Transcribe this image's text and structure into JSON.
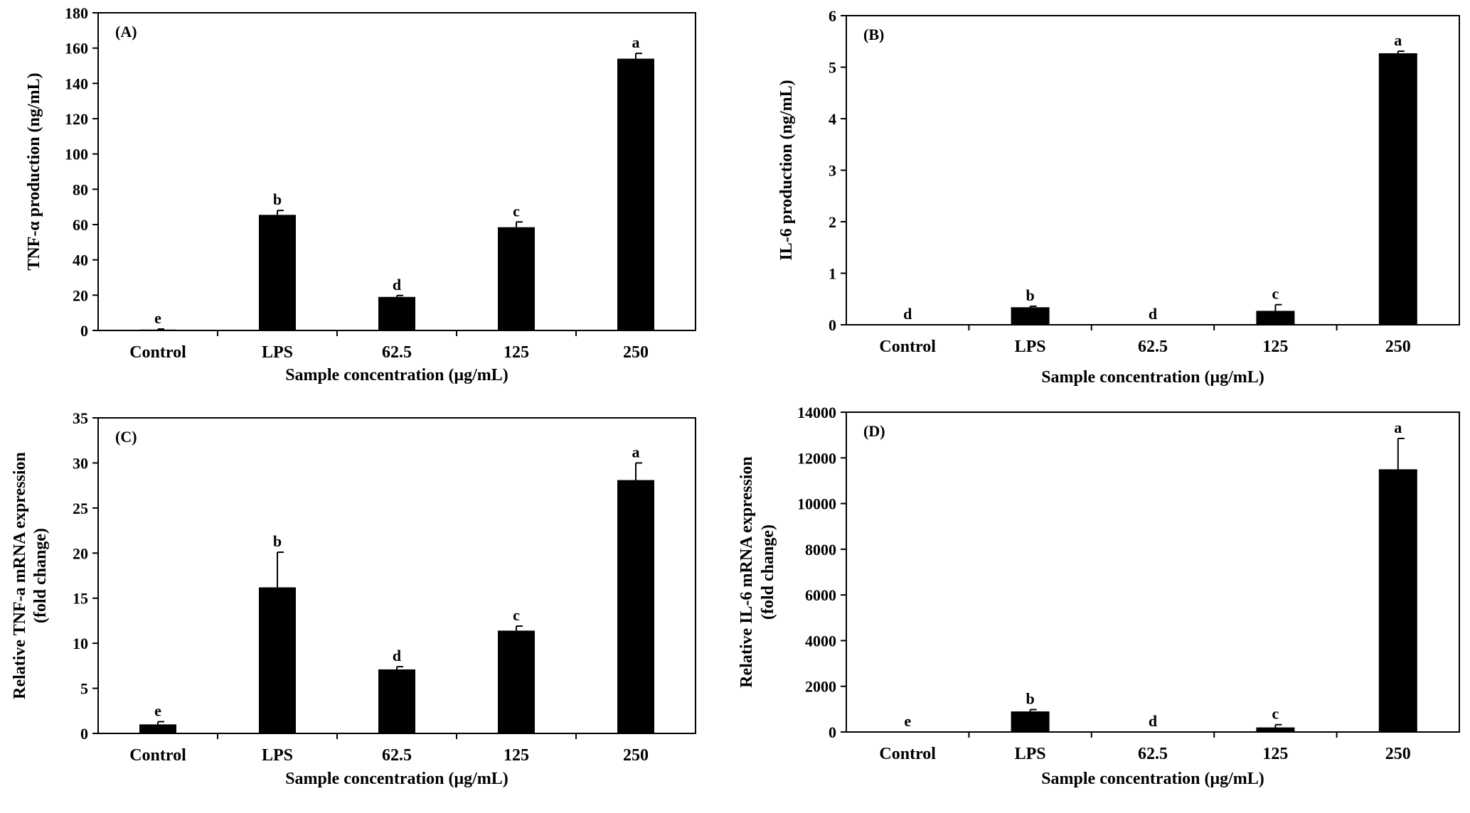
{
  "figure": {
    "colors": {
      "bar": "#000000",
      "axis": "#000000",
      "background": "#ffffff"
    }
  },
  "chart_data": [
    {
      "type": "bar",
      "panel_label": "(A)",
      "xlabel": "Sample concentration (μg/mL)",
      "ylabel": "TNF-α production (ng/mL)",
      "categories": [
        "Control",
        "LPS",
        "62.5",
        "125",
        "250"
      ],
      "values": [
        0.5,
        65.5,
        19,
        58.5,
        154
      ],
      "errors": [
        0.3,
        2.5,
        0.8,
        3,
        3
      ],
      "significance": [
        "e",
        "b",
        "d",
        "c",
        "a"
      ],
      "ylim": [
        0,
        180
      ],
      "yticks": [
        "0",
        "20",
        "40",
        "60",
        "80",
        "100",
        "120",
        "140",
        "160",
        "180"
      ],
      "grid": false,
      "legend": "none"
    },
    {
      "type": "bar",
      "panel_label": "(B)",
      "xlabel": "Sample concentration (μg/mL)",
      "ylabel": "IL-6 production (ng/mL)",
      "categories": [
        "Control",
        "LPS",
        "62.5",
        "125",
        "250"
      ],
      "values": [
        0,
        0.34,
        0,
        0.27,
        5.27
      ],
      "errors": [
        0,
        0.02,
        0,
        0.12,
        0.04
      ],
      "significance": [
        "d",
        "b",
        "d",
        "c",
        "a"
      ],
      "ylim": [
        0,
        6
      ],
      "yticks": [
        "0",
        "1",
        "2",
        "3",
        "4",
        "5",
        "6"
      ],
      "grid": false,
      "legend": "none"
    },
    {
      "type": "bar",
      "panel_label": "(C)",
      "xlabel": "Sample concentration (μg/mL)",
      "ylabel": "Relative TNF-a mRNA expression",
      "ylabel2": "(fold change)",
      "categories": [
        "Control",
        "LPS",
        "62.5",
        "125",
        "250"
      ],
      "values": [
        1,
        16.2,
        7.1,
        11.4,
        28.1
      ],
      "errors": [
        0.3,
        3.9,
        0.3,
        0.5,
        1.9
      ],
      "significance": [
        "e",
        "b",
        "d",
        "c",
        "a"
      ],
      "ylim": [
        0,
        35
      ],
      "yticks": [
        "0",
        "5",
        "10",
        "15",
        "20",
        "25",
        "30",
        "35"
      ],
      "grid": false,
      "legend": "none"
    },
    {
      "type": "bar",
      "panel_label": "(D)",
      "xlabel": "Sample concentration (μg/mL)",
      "ylabel": "Relative IL-6 mRNA expression",
      "ylabel2": "(fold change)",
      "categories": [
        "Control",
        "LPS",
        "62.5",
        "125",
        "250"
      ],
      "values": [
        0,
        900,
        0,
        200,
        11500
      ],
      "errors": [
        0,
        80,
        0,
        120,
        1350
      ],
      "significance": [
        "e",
        "b",
        "d",
        "c",
        "a"
      ],
      "ylim": [
        0,
        14000
      ],
      "yticks": [
        "0",
        "2000",
        "4000",
        "6000",
        "8000",
        "10000",
        "12000",
        "14000"
      ],
      "grid": false,
      "legend": "none"
    }
  ]
}
